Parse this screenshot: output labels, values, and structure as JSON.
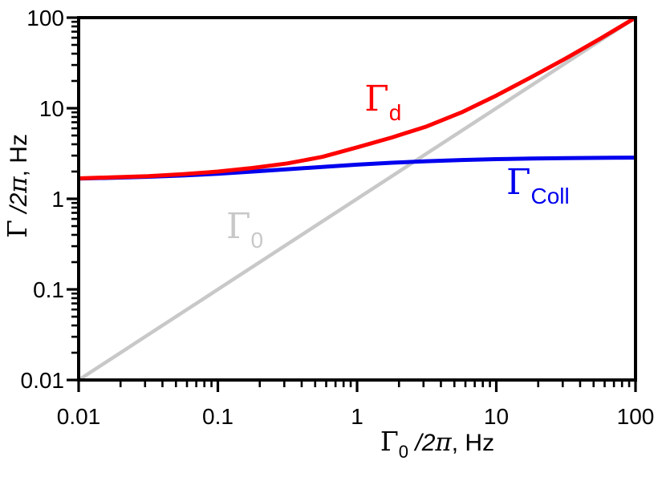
{
  "figure": {
    "background": "#ffffff",
    "frame_color": "#000000",
    "tick_color": "#000000",
    "text_color": "#000000"
  },
  "chart_data": {
    "type": "line",
    "x_scale": "log",
    "y_scale": "log",
    "xlim": [
      0.01,
      100
    ],
    "ylim": [
      0.01,
      100
    ],
    "grid": false,
    "legend": "none (inline curve labels)",
    "xlabel": {
      "gamma": "Γ",
      "sub": "0",
      "frac": " /2",
      "pi": "π",
      "unit": ", Hz"
    },
    "ylabel": {
      "gamma": "Γ",
      "sub": "",
      "frac": " /2",
      "pi": "π",
      "unit": ", Hz"
    },
    "x_ticks": {
      "values": [
        0.01,
        0.1,
        1,
        10,
        100
      ],
      "labels": [
        "0.01",
        "0.1",
        "1",
        "10",
        "100"
      ]
    },
    "y_ticks": {
      "values": [
        0.01,
        0.1,
        1,
        10,
        100
      ],
      "labels": [
        "0.01",
        "0.1",
        "1",
        "10",
        "100"
      ]
    },
    "x": [
      0.01,
      0.0178,
      0.0316,
      0.0562,
      0.1,
      0.178,
      0.316,
      0.562,
      1,
      1.78,
      3.16,
      5.62,
      10,
      17.8,
      31.6,
      56.2,
      100
    ],
    "series": [
      {
        "id": "gamma0",
        "name": "Gamma_0 (bare rate, line y = x)",
        "color": "#c8c8c8",
        "width": 4.5,
        "values": [
          0.01,
          0.0178,
          0.0316,
          0.0562,
          0.1,
          0.178,
          0.316,
          0.562,
          1,
          1.78,
          3.16,
          5.62,
          10,
          17.8,
          31.6,
          56.2,
          100
        ],
        "label": {
          "gamma": "Γ",
          "sub": "0",
          "x": 0.115,
          "y": 0.37,
          "color": "#c8c8c8"
        }
      },
      {
        "id": "gammacoll",
        "name": "Gamma_Coll (collisional rate, saturates near 2.85 Hz)",
        "color": "#0000ee",
        "width": 5,
        "values": [
          1.67,
          1.71,
          1.75,
          1.81,
          1.89,
          2.0,
          2.12,
          2.25,
          2.38,
          2.5,
          2.6,
          2.68,
          2.74,
          2.78,
          2.81,
          2.83,
          2.85
        ],
        "label": {
          "gamma": "Γ",
          "sub": "Coll",
          "x": 11.8,
          "y": 1.13,
          "color": "#0000ee"
        }
      },
      {
        "id": "gammad",
        "name": "Gamma_d (total decay rate)",
        "color": "#ff0000",
        "width": 5,
        "values": [
          1.68,
          1.73,
          1.78,
          1.87,
          2.0,
          2.19,
          2.46,
          2.9,
          3.7,
          4.75,
          6.3,
          9.0,
          13.8,
          22.0,
          35.5,
          59.0,
          100
        ],
        "label": {
          "gamma": "Γ",
          "sub": "d",
          "x": 1.13,
          "y": 9.4,
          "color": "#ff0000"
        }
      }
    ]
  }
}
